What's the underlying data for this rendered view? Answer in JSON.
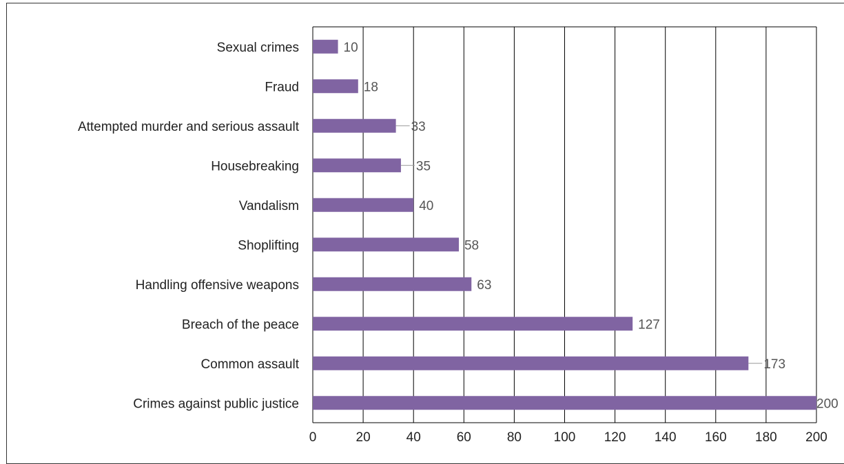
{
  "chart_data": {
    "type": "bar",
    "orientation": "horizontal",
    "title": "",
    "xlabel": "",
    "ylabel": "",
    "categories": [
      "Crimes against public justice",
      "Common assault",
      "Breach of the peace",
      "Handling offensive weapons",
      "Shoplifting",
      "Vandalism",
      "Housebreaking",
      "Attempted murder and serious assault",
      "Fraud",
      "Sexual crimes"
    ],
    "values": [
      200,
      173,
      127,
      63,
      58,
      40,
      35,
      33,
      18,
      10
    ],
    "data_labels": [
      "200",
      "173",
      "127",
      "63",
      "58",
      "40",
      "35",
      "33",
      "18",
      "10"
    ],
    "xlim": [
      0,
      200
    ],
    "x_ticks": [
      0,
      20,
      40,
      60,
      80,
      100,
      120,
      140,
      160,
      180,
      200
    ],
    "x_tick_labels": [
      "0",
      "20",
      "40",
      "60",
      "80",
      "100",
      "120",
      "140",
      "160",
      "180",
      "200"
    ],
    "grid": "vertical",
    "legend": "none",
    "bar_color": "#8064a2",
    "grid_color": "#000000"
  }
}
